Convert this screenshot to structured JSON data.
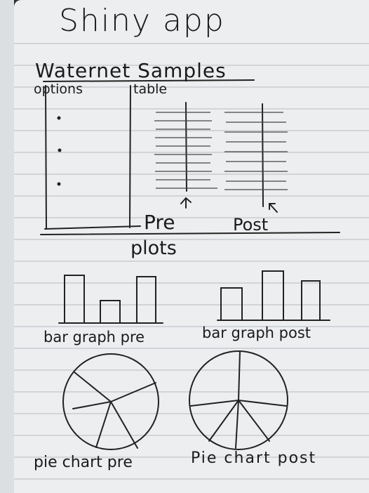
{
  "sketch": {
    "title": "Shiny app",
    "subtitle": "Waternet Samples",
    "sidebar": {
      "label": "options"
    },
    "main": {
      "label": "table",
      "tables": [
        {
          "label": "Pre"
        },
        {
          "label": "Post"
        }
      ]
    },
    "plots": {
      "label": "plots",
      "bar_pre": {
        "label": "bar graph pre"
      },
      "bar_post": {
        "label": "bar graph post"
      },
      "pie_pre": {
        "label": "pie chart pre"
      },
      "pie_post": {
        "label": "Pie chart post"
      }
    }
  }
}
